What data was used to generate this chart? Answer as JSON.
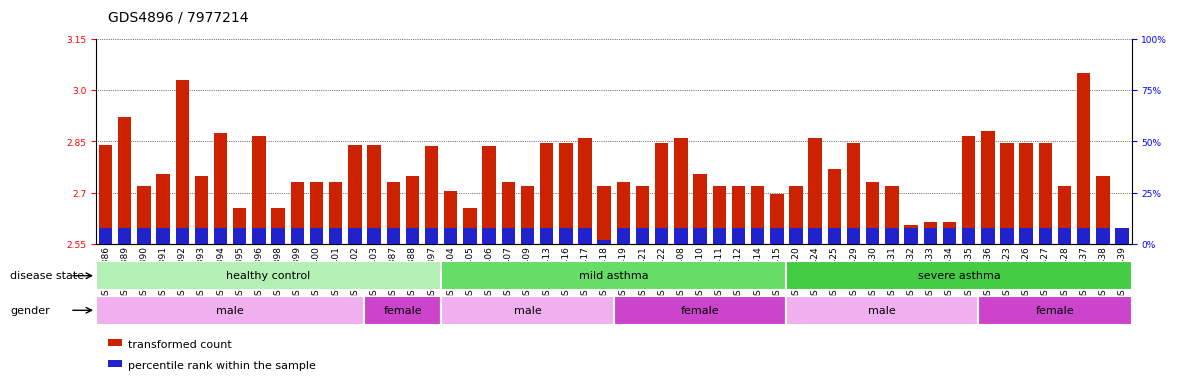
{
  "title": "GDS4896 / 7977214",
  "ylim_left": [
    2.55,
    3.15
  ],
  "ylim_right": [
    0,
    100
  ],
  "yticks_left": [
    2.55,
    2.7,
    2.85,
    3.0,
    3.15
  ],
  "yticks_right": [
    0,
    25,
    50,
    75,
    100
  ],
  "ytick_labels_right": [
    "0%",
    "25%",
    "50%",
    "75%",
    "100%"
  ],
  "samples": [
    "GSM665386",
    "GSM665389",
    "GSM665390",
    "GSM665391",
    "GSM665392",
    "GSM665393",
    "GSM665394",
    "GSM665395",
    "GSM665396",
    "GSM665398",
    "GSM665399",
    "GSM665400",
    "GSM665401",
    "GSM665402",
    "GSM665403",
    "GSM665387",
    "GSM665388",
    "GSM665397",
    "GSM665404",
    "GSM665405",
    "GSM665406",
    "GSM665407",
    "GSM665409",
    "GSM665413",
    "GSM665416",
    "GSM665417",
    "GSM665418",
    "GSM665419",
    "GSM665421",
    "GSM665422",
    "GSM665408",
    "GSM665410",
    "GSM665411",
    "GSM665412",
    "GSM665414",
    "GSM665415",
    "GSM665420",
    "GSM665424",
    "GSM665425",
    "GSM665429",
    "GSM665430",
    "GSM665431",
    "GSM665432",
    "GSM665433",
    "GSM665434",
    "GSM665435",
    "GSM665436",
    "GSM665423",
    "GSM665426",
    "GSM665427",
    "GSM665428",
    "GSM665437",
    "GSM665438",
    "GSM665439"
  ],
  "bar_values": [
    2.84,
    2.92,
    2.72,
    2.755,
    3.03,
    2.75,
    2.875,
    2.655,
    2.865,
    2.655,
    2.73,
    2.73,
    2.73,
    2.84,
    2.84,
    2.73,
    2.75,
    2.835,
    2.705,
    2.655,
    2.835,
    2.73,
    2.72,
    2.845,
    2.845,
    2.86,
    2.72,
    2.73,
    2.72,
    2.845,
    2.86,
    2.755,
    2.72,
    2.72,
    2.72,
    2.695,
    2.72,
    2.86,
    2.77,
    2.845,
    2.73,
    2.72,
    2.605,
    2.615,
    2.615,
    2.865,
    2.88,
    2.845,
    2.845,
    2.845,
    2.72,
    3.05,
    2.75,
    2.57
  ],
  "percentile_values": [
    8,
    8,
    8,
    8,
    8,
    8,
    8,
    8,
    8,
    8,
    8,
    8,
    8,
    8,
    8,
    8,
    8,
    8,
    8,
    8,
    8,
    8,
    8,
    8,
    8,
    8,
    2,
    8,
    8,
    8,
    8,
    8,
    8,
    8,
    8,
    8,
    8,
    8,
    8,
    8,
    8,
    8,
    8,
    8,
    8,
    8,
    8,
    8,
    8,
    8,
    8,
    8,
    8,
    8
  ],
  "disease_state_groups": [
    {
      "label": "healthy control",
      "start": 0,
      "end": 18,
      "color": "#b3f0b3"
    },
    {
      "label": "mild asthma",
      "start": 18,
      "end": 36,
      "color": "#66dd66"
    },
    {
      "label": "severe asthma",
      "start": 36,
      "end": 54,
      "color": "#44cc44"
    }
  ],
  "gender_groups": [
    {
      "label": "male",
      "start": 0,
      "end": 14,
      "color": "#f0b0f0"
    },
    {
      "label": "female",
      "start": 14,
      "end": 18,
      "color": "#cc44cc"
    },
    {
      "label": "male",
      "start": 18,
      "end": 27,
      "color": "#f0b0f0"
    },
    {
      "label": "female",
      "start": 27,
      "end": 36,
      "color": "#cc44cc"
    },
    {
      "label": "male",
      "start": 36,
      "end": 46,
      "color": "#f0b0f0"
    },
    {
      "label": "female",
      "start": 46,
      "end": 54,
      "color": "#cc44cc"
    }
  ],
  "bar_color": "#cc2200",
  "percentile_color": "#2222cc",
  "title_fontsize": 10,
  "tick_fontsize": 6.5,
  "label_fontsize": 8,
  "row_label_fontsize": 8,
  "legend_fontsize": 8
}
